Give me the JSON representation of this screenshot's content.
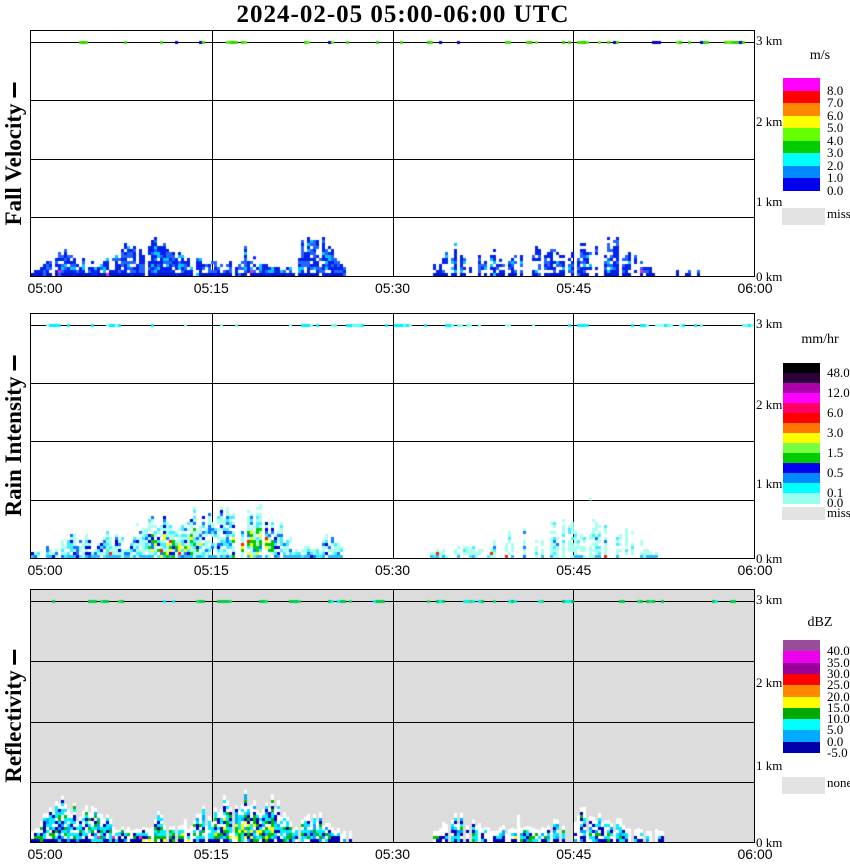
{
  "title": "2024-02-05  05:00-06:00 UTC",
  "chart_data": {
    "type": "heatmap",
    "description": "Three time-height radar quicklook panels (fall velocity, rain intensity, reflectivity), low-level precipitation echoes below ~0.8 km, plus a clutter dash line at 3 km.",
    "x_axis": {
      "ticks": [
        "05:00",
        "05:15",
        "05:30",
        "05:45",
        "06:00"
      ],
      "span_minutes": 60
    },
    "y_axis": {
      "ticks": [
        "0 km",
        "1 km",
        "2 km",
        "3 km"
      ],
      "top_km": 3.15,
      "dash_level_km": 3.0
    },
    "panels": [
      {
        "id": "fall-velocity",
        "ylabel": "Fall Velocity",
        "legend": {
          "title": "m/s",
          "bands": [
            {
              "color": "#ff00ff",
              "label": "8.0"
            },
            {
              "color": "#ff0000",
              "label": "7.0"
            },
            {
              "color": "#ff8800",
              "label": "6.0"
            },
            {
              "color": "#ffff00",
              "label": "5.0"
            },
            {
              "color": "#66ff00",
              "label": "4.0"
            },
            {
              "color": "#00cc00",
              "label": "3.0"
            },
            {
              "color": "#00ffff",
              "label": "2.0"
            },
            {
              "color": "#0088ff",
              "label": "1.0"
            },
            {
              "color": "#0000ee",
              "label": "0.0"
            }
          ],
          "missing": {
            "color": "#e3e3e3",
            "label": "miss"
          }
        },
        "background": "#ffffff",
        "dash_colors": [
          "#44dd00",
          "#33cc00",
          "#66ee22",
          "#44dd00",
          "#0000cc"
        ],
        "palette": {
          "colors": [
            "#0022ee",
            "#2266ff",
            "#00ccff"
          ],
          "weights": [
            0.45,
            0.28,
            0.09
          ],
          "gap": 0.18
        },
        "bottom_row": {
          "color": "#0018cc",
          "chance": 0.75
        },
        "rare_color": "#ff22cc",
        "segments": [
          {
            "start_min": 0,
            "end_min": 26,
            "max_top_km": 0.62,
            "gap_chance": 0.1
          },
          {
            "start_min": 33,
            "end_min": 52,
            "max_top_km": 0.5,
            "gap_chance": 0.3,
            "palette": {
              "colors": [
                "#0022ee",
                "#2266ff",
                "#00ccff"
              ],
              "weights": [
                0.4,
                0.22,
                0.05
              ],
              "gap": 0.33
            }
          },
          {
            "start_min": 53.5,
            "end_min": 55.5,
            "max_top_km": 0.18,
            "gap_chance": 0.35
          }
        ],
        "hotspots": {
          "windows": [],
          "colors": [],
          "weights": [],
          "chance": 0
        }
      },
      {
        "id": "rain-intensity",
        "ylabel": "Rain Intensity",
        "legend": {
          "title": "mm/hr",
          "bands": [
            {
              "color": "#000000",
              "label": "48.0"
            },
            {
              "color": "#2d0038",
              "label": ""
            },
            {
              "color": "#aa00aa",
              "label": "12.0"
            },
            {
              "color": "#ff00ff",
              "label": ""
            },
            {
              "color": "#ff0066",
              "label": "6.0"
            },
            {
              "color": "#ff0000",
              "label": ""
            },
            {
              "color": "#ff7700",
              "label": "3.0"
            },
            {
              "color": "#ffff00",
              "label": ""
            },
            {
              "color": "#77ff44",
              "label": "1.5"
            },
            {
              "color": "#00cc00",
              "label": ""
            },
            {
              "color": "#0000ee",
              "label": "0.5"
            },
            {
              "color": "#0088ff",
              "label": ""
            },
            {
              "color": "#00ffff",
              "label": "0.1"
            },
            {
              "color": "#99ffee",
              "label": "0.0"
            }
          ],
          "missing": {
            "color": "#e3e3e3",
            "label": "miss"
          }
        },
        "background": "#ffffff",
        "dash_colors": [
          "#00eeff",
          "#66ffee",
          "#00eeff",
          "#99ffee"
        ],
        "palette": {
          "colors": [
            "#aaffee",
            "#44eeff",
            "#1177ff",
            "#0000dd"
          ],
          "weights": [
            0.4,
            0.22,
            0.12,
            0.08
          ],
          "gap": 0.18
        },
        "bottom_row": {
          "color": "#33bbff",
          "chance": 0.5
        },
        "rare_color": "#ff2200",
        "segments": [
          {
            "start_min": 0,
            "end_min": 26,
            "max_top_km": 0.72,
            "gap_chance": 0.1
          },
          {
            "start_min": 33,
            "end_min": 52,
            "max_top_km": 0.5,
            "gap_chance": 0.32,
            "palette": {
              "colors": [
                "#aaffee",
                "#44eeff",
                "#1177ff"
              ],
              "weights": [
                0.55,
                0.12,
                0.03
              ],
              "gap": 0.3
            }
          }
        ],
        "hotspots": {
          "windows": [
            [
              9.5,
              14
            ],
            [
              16.5,
              20
            ]
          ],
          "colors": [
            "#00cc00",
            "#ffff00",
            "#ff2200"
          ],
          "weights": [
            0.6,
            0.35,
            0.05
          ],
          "chance": 0.4
        }
      },
      {
        "id": "reflectivity",
        "ylabel": "Reflectivity",
        "legend": {
          "title": "dBZ",
          "bands": [
            {
              "color": "#994c99",
              "label": "40.0"
            },
            {
              "color": "#ee00ee",
              "label": "35.0"
            },
            {
              "color": "#990099",
              "label": "30.0"
            },
            {
              "color": "#ff0000",
              "label": "25.0"
            },
            {
              "color": "#ff8800",
              "label": "20.0"
            },
            {
              "color": "#ffff00",
              "label": "15.0"
            },
            {
              "color": "#00aa00",
              "label": "10.0"
            },
            {
              "color": "#00ffff",
              "label": "5.0"
            },
            {
              "color": "#00aaff",
              "label": "0.0"
            },
            {
              "color": "#0000aa",
              "label": "-5.0"
            }
          ],
          "missing": {
            "color": "#e3e3e3",
            "label": "none"
          }
        },
        "background": "#dcdcdc",
        "white_underlay": true,
        "dash_colors": [
          "#00cc44",
          "#00eeff",
          "#00cc44",
          "#22dd66"
        ],
        "palette": {
          "colors": [
            "#00eeff",
            "#00aaff",
            "#0000bb",
            "#00bb00",
            "#ffffff"
          ],
          "weights": [
            0.36,
            0.1,
            0.2,
            0.12,
            0.08
          ],
          "gap": 0.14
        },
        "bottom_row": {
          "color": "#0000bb",
          "chance": 0.5
        },
        "rare_color": "#ff22cc",
        "segments": [
          {
            "start_min": 0,
            "end_min": 26.5,
            "max_top_km": 0.6,
            "gap_chance": 0.1
          },
          {
            "start_min": 33,
            "end_min": 52.5,
            "max_top_km": 0.52,
            "gap_chance": 0.26,
            "hotspots": {
              "windows": [
                [
                  36,
                  42
                ]
              ],
              "colors": [
                "#00bb00",
                "#ffff00"
              ],
              "weights": [
                0.8,
                0.2
              ],
              "chance": 0.18
            }
          }
        ],
        "hotspots": {
          "windows": [
            [
              8,
              13
            ],
            [
              15,
              20
            ]
          ],
          "colors": [
            "#00bb00",
            "#ffff00"
          ],
          "weights": [
            0.55,
            0.45
          ],
          "chance": 0.45
        }
      }
    ]
  }
}
